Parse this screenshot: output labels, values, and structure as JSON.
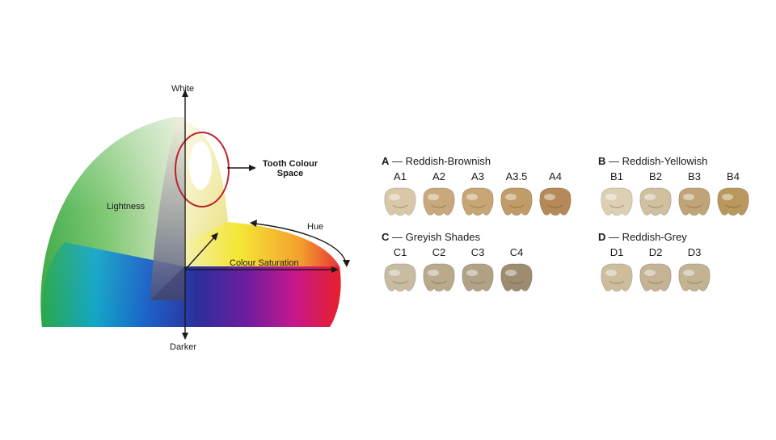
{
  "diagram": {
    "white_label": "White",
    "darker_label": "Darker",
    "lightness_label": "Lightness",
    "hue_label": "Hue",
    "saturation_label": "Colour Saturation",
    "tooth_space_label_line1": "Tooth Colour",
    "tooth_space_label_line2": "Space",
    "highlight_color": "#c0202c"
  },
  "shade_groups": [
    {
      "letter": "A",
      "name": "Reddish-Brownish",
      "shades": [
        {
          "code": "A1",
          "color": "#d8c8a8"
        },
        {
          "code": "A2",
          "color": "#c9a97c"
        },
        {
          "code": "A3",
          "color": "#c7a676"
        },
        {
          "code": "A3.5",
          "color": "#c19b68"
        },
        {
          "code": "A4",
          "color": "#b58a58"
        }
      ]
    },
    {
      "letter": "B",
      "name": "Reddish-Yellowish",
      "shades": [
        {
          "code": "B1",
          "color": "#ddd0b2"
        },
        {
          "code": "B2",
          "color": "#cfc0a0"
        },
        {
          "code": "B3",
          "color": "#c0a478"
        },
        {
          "code": "B4",
          "color": "#b8985c"
        }
      ]
    },
    {
      "letter": "C",
      "name": "Greyish Shades",
      "shades": [
        {
          "code": "C1",
          "color": "#c7bba1"
        },
        {
          "code": "C2",
          "color": "#b9aa8c"
        },
        {
          "code": "C3",
          "color": "#b1a287"
        },
        {
          "code": "C4",
          "color": "#9d8c70"
        }
      ]
    },
    {
      "letter": "D",
      "name": "Reddish-Grey",
      "shades": [
        {
          "code": "D1",
          "color": "#cdbd9c"
        },
        {
          "code": "D2",
          "color": "#c4b394"
        },
        {
          "code": "D3",
          "color": "#c2b393"
        }
      ]
    }
  ]
}
